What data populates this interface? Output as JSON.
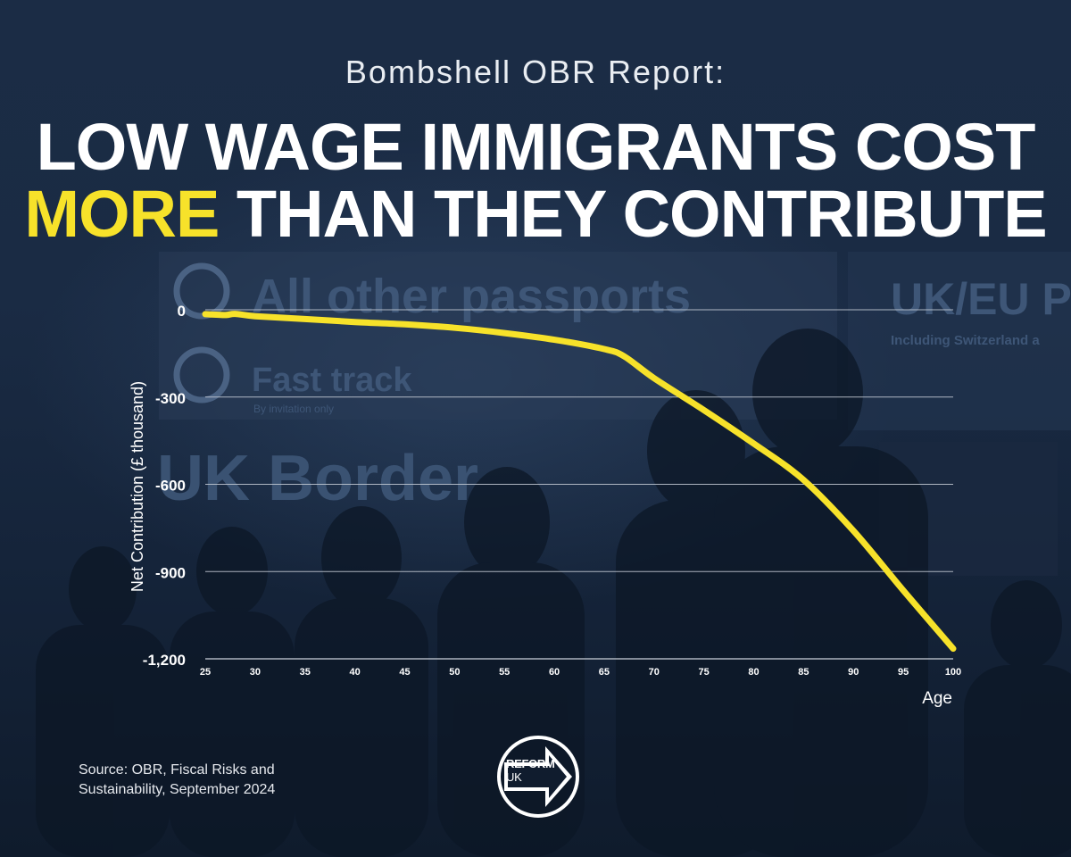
{
  "header": {
    "kicker": "Bombshell OBR Report:",
    "line1": "LOW WAGE IMMIGRANTS COST",
    "line2_accent": "MORE",
    "line2_rest": " THAN THEY CONTRIBUTE"
  },
  "background_signs": {
    "sign1": "All other passports",
    "sign2": "Fast track",
    "sign2_sub": "By invitation only",
    "sign3": "UK/EU P",
    "sign3_sub": "Including Switzerland a",
    "sign4": "UK Border"
  },
  "colors": {
    "accent": "#f7e22a",
    "line": "#f7e22a",
    "text": "#ffffff",
    "grid": "#c8ced8"
  },
  "chart_data": {
    "type": "line",
    "title": "",
    "xlabel": "Age",
    "ylabel": "Net Contribution (£ thousand)",
    "xlim": [
      25,
      100
    ],
    "ylim": [
      -1200,
      0
    ],
    "x_ticks": [
      25,
      30,
      35,
      40,
      45,
      50,
      55,
      60,
      65,
      70,
      75,
      80,
      85,
      90,
      95,
      100
    ],
    "x_tick_labels": [
      "25",
      "30",
      "35",
      "40",
      "45",
      "50",
      "55",
      "60",
      "65",
      "70",
      "75",
      "80",
      "85",
      "90",
      "95",
      "100"
    ],
    "y_ticks": [
      0,
      -300,
      -600,
      -900,
      -1200
    ],
    "y_tick_labels": [
      "0",
      "-300",
      "-600",
      "-900",
      "-1,200"
    ],
    "grid": true,
    "series": [
      {
        "x": [
          25,
          27,
          28,
          30,
          35,
          40,
          45,
          50,
          55,
          60,
          65,
          67,
          70,
          75,
          80,
          85,
          90,
          95,
          100
        ],
        "values": [
          -15,
          -18,
          -14,
          -22,
          -32,
          -42,
          -50,
          -62,
          -80,
          -103,
          -135,
          -160,
          -235,
          -345,
          -460,
          -585,
          -760,
          -965,
          -1165
        ]
      }
    ]
  },
  "source": {
    "line1": "Source: OBR, Fiscal Risks and",
    "line2": "Sustainability, September 2024"
  },
  "logo": {
    "line1": "REFORM",
    "line2": "UK"
  }
}
